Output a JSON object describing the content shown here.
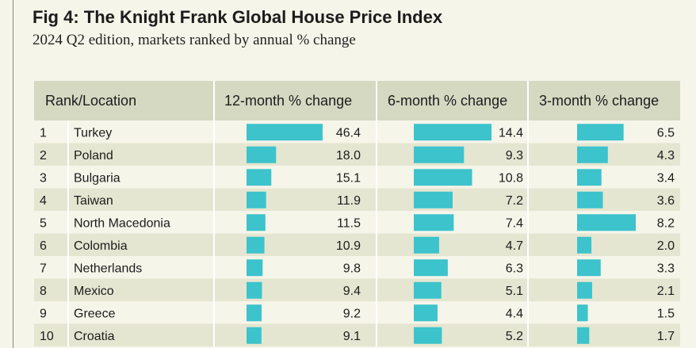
{
  "title": "Fig 4: The Knight Frank Global House Price Index",
  "subtitle": "2024 Q2 edition, markets ranked by annual % change",
  "chart_data": {
    "type": "table",
    "columns": [
      "Rank/Location",
      "12-month % change",
      "6-month % change",
      "3-month % change"
    ],
    "ranks": [
      "1",
      "2",
      "3",
      "4",
      "5",
      "6",
      "7",
      "8",
      "9",
      "10"
    ],
    "locations": [
      "Turkey",
      "Poland",
      "Bulgaria",
      "Taiwan",
      "North Macedonia",
      "Colombia",
      "Netherlands",
      "Mexico",
      "Greece",
      "Croatia"
    ],
    "series": [
      {
        "name": "12-month % change",
        "values": [
          46.4,
          18.0,
          15.1,
          11.9,
          11.5,
          10.9,
          9.8,
          9.4,
          9.2,
          9.1
        ]
      },
      {
        "name": "6-month % change",
        "values": [
          14.4,
          9.3,
          10.8,
          7.2,
          7.4,
          4.7,
          6.3,
          5.1,
          4.4,
          5.2
        ]
      },
      {
        "name": "3-month % change",
        "values": [
          6.5,
          4.3,
          3.4,
          3.6,
          8.2,
          2.0,
          3.3,
          2.1,
          1.5,
          1.7
        ]
      }
    ]
  },
  "colors": {
    "bar": "#3cc3cc",
    "header_bg": "#d6d9c2",
    "row_alt": "#e4e6d1",
    "row_plain": "#f6f5e9",
    "divider": "#ffffff"
  }
}
